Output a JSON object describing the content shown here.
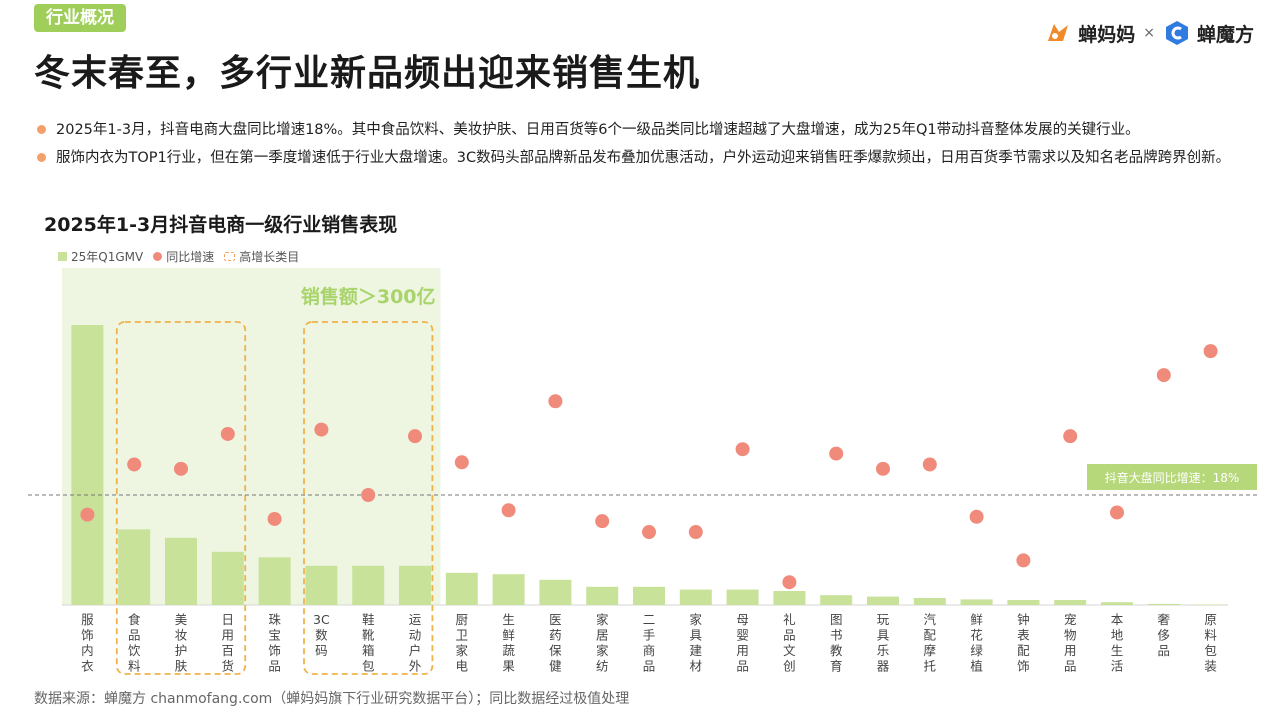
{
  "header": {
    "section_tag": "行业概况",
    "title": "冬末春至，多行业新品频出迎来销售生机",
    "logo_left": "蝉妈妈",
    "logo_sep": "×",
    "logo_right": "蝉魔方"
  },
  "bullets": [
    "2025年1-3月，抖音电商大盘同比增速18%。其中食品饮料、美妆护肤、日用百货等6个一级品类同比增速超越了大盘增速，成为25年Q1带动抖音整体发展的关键行业。",
    "服饰内衣为TOP1行业，但在第一季度增速低于行业大盘增速。3C数码头部品牌新品发布叠加优惠活动，户外运动迎来销售旺季爆款频出，日用百货季节需求以及知名老品牌跨界创新。"
  ],
  "source": "数据来源：蝉魔方 chanmofang.com（蝉妈妈旗下行业研究数据平台）；同比数据经过极值处理",
  "colors": {
    "bar": "#c8e29a",
    "dot": "#f08a7b",
    "highlight_box": "#f0b24a",
    "highlight_text": "#a9d46b",
    "region": "#eef6e2",
    "ref_label_bg": "#b6d77a"
  },
  "chart_data": {
    "type": "bar",
    "title": "2025年1-3月抖音电商一级行业销售表现",
    "legend": [
      "25年Q1GMV",
      "同比增速",
      "高增长类目"
    ],
    "legend_position": "top-left",
    "categories": [
      "服饰内衣",
      "食品饮料",
      "美妆护肤",
      "日用百货",
      "珠宝饰品",
      "3C数码",
      "鞋靴箱包",
      "运动户外",
      "厨卫家电",
      "生鲜蔬果",
      "医药保健",
      "家居家纺",
      "二手商品",
      "家具建材",
      "母婴用品",
      "礼品文创",
      "图书教育",
      "玩具乐器",
      "汽配摩托",
      "鲜花绿植",
      "钟表配饰",
      "宠物用品",
      "本地生活",
      "奢侈品",
      "原料包装"
    ],
    "series": [
      {
        "name": "25年Q1GMV",
        "type": "bar",
        "values": [
          100,
          27,
          24,
          19,
          17,
          14,
          14,
          14,
          11.5,
          11,
          9,
          6.5,
          6.5,
          5.5,
          5.5,
          5,
          3.5,
          3,
          2.5,
          2,
          1.8,
          1.8,
          1,
          0.4,
          0.2
        ]
      },
      {
        "name": "同比增速",
        "type": "scatter",
        "values": [
          9,
          32,
          30,
          46,
          7,
          48,
          18,
          45,
          33,
          11,
          61,
          6,
          1,
          1,
          39,
          -22,
          37,
          30,
          32,
          8,
          -12,
          45,
          10,
          73,
          84
        ]
      }
    ],
    "reference_line": {
      "value": 18,
      "label": "抖音大盘同比增速：18%"
    },
    "highlight_region": {
      "categories": [
        "服饰内衣",
        "食品饮料",
        "美妆护肤",
        "日用百货",
        "珠宝饰品",
        "3C数码",
        "鞋靴箱包",
        "运动户外"
      ],
      "label": "销售额＞300亿"
    },
    "highlight_groups": [
      {
        "categories": [
          "食品饮料",
          "美妆护肤",
          "日用百货"
        ]
      },
      {
        "categories": [
          "3C数码",
          "鞋靴箱包",
          "运动户外"
        ]
      }
    ],
    "xlabel": "",
    "ylabel": "",
    "grid": false
  }
}
